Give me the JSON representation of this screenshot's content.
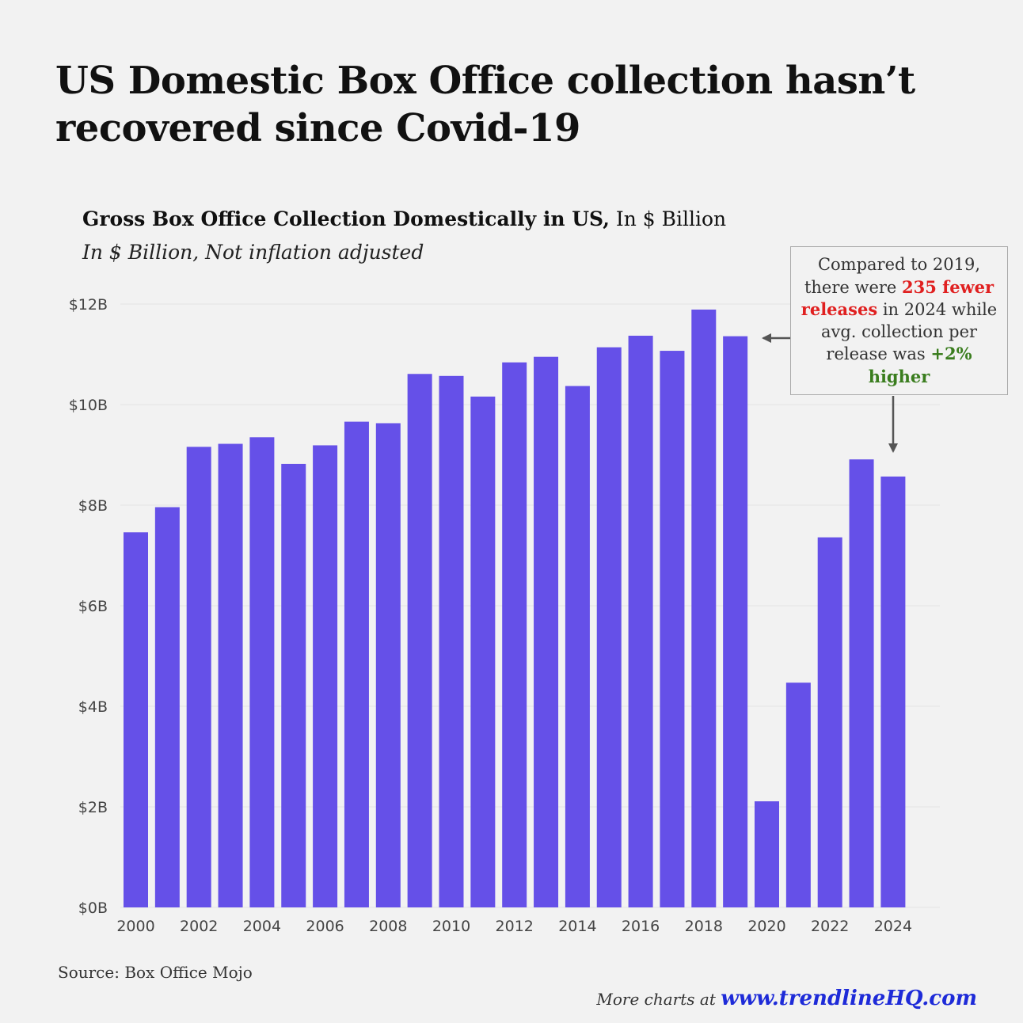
{
  "title": "US Domestic Box Office collection hasn’t recovered since Covid-19",
  "subtitle_bold": "Gross Box Office Collection Domestically in US,",
  "subtitle_rest": " In $ Billion",
  "subtitle2": "In $ Billion, Not inflation adjusted",
  "callout": {
    "t1": "Compared to 2019, there were ",
    "highlight_red": "235 fewer releases",
    "t2": " in 2024 while avg. collection per release was ",
    "highlight_green": "+2% higher"
  },
  "source": "Source: Box Office Mojo",
  "more_text": "More charts at ",
  "more_link": "www.trendlineHQ.com",
  "colors": {
    "bar": "#6550e8",
    "background": "#f2f2f2",
    "highlight_red": "#e02020",
    "highlight_green": "#3a7d1e",
    "link": "#1e2bd8"
  },
  "chart_data": {
    "type": "bar",
    "categories": [
      "2000",
      "2001",
      "2002",
      "2003",
      "2004",
      "2005",
      "2006",
      "2007",
      "2008",
      "2009",
      "2010",
      "2011",
      "2012",
      "2013",
      "2014",
      "2015",
      "2016",
      "2017",
      "2018",
      "2019",
      "2020",
      "2021",
      "2022",
      "2023",
      "2024"
    ],
    "values": [
      7.46,
      7.96,
      9.16,
      9.22,
      9.35,
      8.82,
      9.19,
      9.66,
      9.63,
      10.61,
      10.57,
      10.16,
      10.84,
      10.95,
      10.37,
      11.14,
      11.37,
      11.07,
      11.89,
      11.36,
      2.11,
      4.47,
      7.36,
      8.91,
      8.57
    ],
    "ylim": [
      0,
      12
    ],
    "yticks": [
      0,
      2,
      4,
      6,
      8,
      10,
      12
    ],
    "ytick_labels": [
      "$0B",
      "$2B",
      "$4B",
      "$6B",
      "$8B",
      "$10B",
      "$12B"
    ],
    "xtick_labels": [
      "2000",
      "2002",
      "2004",
      "2006",
      "2008",
      "2010",
      "2012",
      "2014",
      "2016",
      "2018",
      "2020",
      "2022",
      "2024"
    ],
    "grid": true,
    "xlabel": "",
    "ylabel": ""
  }
}
